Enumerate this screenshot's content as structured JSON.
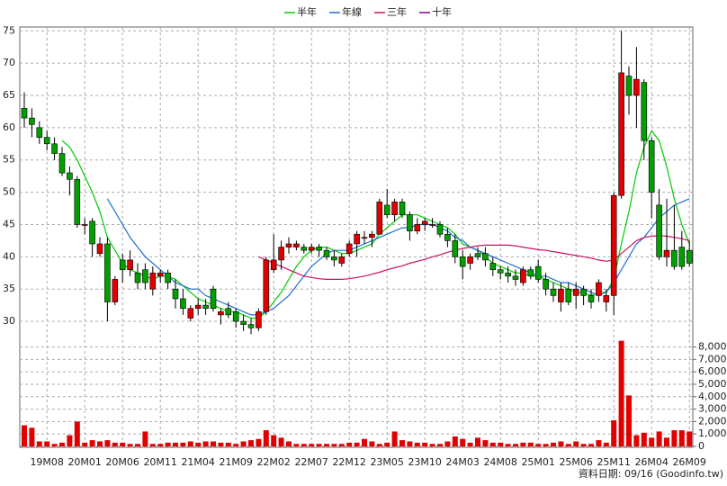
{
  "chart_data": {
    "type": "candlestick",
    "categories": [
      null,
      null,
      null,
      "19M08",
      null,
      null,
      null,
      null,
      "20M01",
      null,
      null,
      null,
      null,
      "20M06",
      null,
      null,
      null,
      null,
      "20M11",
      null,
      null,
      null,
      null,
      "21M04",
      null,
      null,
      null,
      null,
      "21M09",
      null,
      null,
      null,
      null,
      "22M02",
      null,
      null,
      null,
      null,
      "22M07",
      null,
      null,
      null,
      null,
      "22M12",
      null,
      null,
      null,
      null,
      "23M05",
      null,
      null,
      null,
      null,
      "23M10",
      null,
      null,
      null,
      null,
      "24M03",
      null,
      null,
      null,
      null,
      "24M08",
      null,
      null,
      null,
      null,
      "25M01",
      null,
      null,
      null,
      null,
      "25M06",
      null,
      null,
      null,
      null,
      "25M11",
      null,
      null,
      null,
      null,
      "26M04",
      null,
      null,
      null,
      null,
      "26M09"
    ],
    "open": [
      63,
      61.5,
      60,
      58.5,
      57.5,
      56,
      53,
      52,
      45,
      45.5,
      40.5,
      42,
      33,
      39.5,
      38,
      37.5,
      38,
      35,
      37,
      37.5,
      35,
      33.5,
      30.5,
      32,
      32.5,
      35,
      31,
      32,
      31.5,
      30,
      29.5,
      29,
      31.5,
      38,
      39.5,
      41.5,
      41.5,
      41.5,
      41,
      41.5,
      41,
      40,
      39,
      40.5,
      42,
      43,
      43,
      43.5,
      48,
      46.5,
      48.5,
      46.5,
      44,
      45,
      45,
      45,
      43.5,
      42.5,
      40,
      39,
      40.5,
      40.5,
      39,
      38,
      37.5,
      37,
      36,
      38,
      38.5,
      36.5,
      35,
      33,
      35,
      34,
      35,
      34,
      34,
      33,
      34,
      49.5,
      68,
      65,
      67,
      58,
      48,
      40,
      41,
      41.5,
      41
    ],
    "high": [
      65.5,
      63,
      61,
      59.5,
      58.5,
      57,
      54,
      52.5,
      46,
      46,
      43,
      43,
      37,
      40.5,
      41,
      39,
      39,
      38.5,
      38,
      38,
      36.5,
      35,
      32.5,
      33.5,
      33.5,
      35.5,
      32,
      33,
      32,
      31,
      30.5,
      32,
      40,
      43.5,
      42.5,
      43,
      42.5,
      42,
      42,
      42,
      41.5,
      41,
      40.5,
      42.5,
      44,
      44,
      44,
      49,
      50.5,
      49,
      49,
      47,
      46,
      46,
      46,
      45.5,
      44.5,
      43.5,
      41,
      40.5,
      41.5,
      41.5,
      40,
      38.5,
      38.5,
      38,
      38.5,
      38.5,
      39.5,
      37.5,
      36,
      36,
      36,
      36,
      35.5,
      35,
      36.5,
      35,
      50,
      75,
      69.5,
      72.5,
      67.5,
      58.5,
      50.5,
      49,
      48,
      44,
      42.5
    ],
    "low": [
      60,
      58.5,
      57.5,
      56.5,
      55,
      52.5,
      49.5,
      44.5,
      43.5,
      40,
      40,
      30,
      32.5,
      36,
      37,
      35,
      35,
      34,
      36,
      35,
      32,
      31,
      30,
      31,
      31,
      31.5,
      29.5,
      30.5,
      29,
      28.5,
      28,
      28.5,
      31,
      37.5,
      38,
      40.5,
      41,
      40.5,
      40.5,
      40,
      39.5,
      38.5,
      38.5,
      40,
      40,
      42,
      41.5,
      43.5,
      46,
      45.5,
      46,
      42.5,
      43.5,
      44,
      44.5,
      43,
      41.5,
      39,
      36.5,
      38,
      39.5,
      38.5,
      37,
      36.5,
      36,
      35.5,
      35.5,
      36.5,
      36,
      34,
      33,
      31.5,
      32.5,
      32,
      32.5,
      32,
      33,
      31.5,
      31,
      49,
      62,
      60,
      55,
      46,
      39.5,
      38.5,
      38,
      38,
      38.5
    ],
    "close": [
      61.5,
      60.5,
      58.5,
      57.5,
      56,
      53,
      52,
      45,
      45,
      42,
      42,
      33,
      36.5,
      38,
      39.5,
      36,
      36,
      37.5,
      37.5,
      36,
      33.5,
      32,
      32,
      32.5,
      32,
      32,
      31.5,
      31,
      30,
      29.5,
      29,
      31.5,
      39.5,
      39.5,
      41.5,
      42,
      42,
      41,
      41.5,
      41,
      40,
      39.5,
      40,
      42,
      43.5,
      43,
      43.5,
      48.5,
      46.5,
      48.5,
      46.5,
      44,
      45,
      45.5,
      45,
      43.5,
      42.5,
      40,
      38.5,
      40,
      40,
      39.5,
      38,
      37.5,
      37,
      36.5,
      38,
      37,
      36.5,
      35,
      34,
      35,
      33,
      35,
      34,
      33,
      36,
      34,
      49.5,
      68.5,
      65,
      67.5,
      58,
      50,
      40,
      41,
      38.5,
      38.5,
      39
    ],
    "up_color": "#e00000",
    "down_color": "#00a000",
    "volume": [
      1700,
      1500,
      400,
      400,
      200,
      300,
      900,
      2000,
      300,
      500,
      400,
      500,
      300,
      300,
      200,
      200,
      1200,
      200,
      200,
      300,
      300,
      300,
      400,
      300,
      400,
      400,
      300,
      300,
      200,
      400,
      500,
      600,
      1300,
      900,
      700,
      400,
      200,
      200,
      200,
      200,
      200,
      200,
      200,
      300,
      300,
      600,
      400,
      200,
      300,
      1200,
      500,
      400,
      300,
      300,
      200,
      200,
      400,
      800,
      600,
      300,
      700,
      500,
      300,
      300,
      200,
      200,
      300,
      300,
      200,
      200,
      300,
      400,
      200,
      400,
      200,
      200,
      500,
      300,
      2100,
      8500,
      4100,
      900,
      1100,
      700,
      1200,
      700,
      1300,
      1300,
      1200
    ],
    "volume_color": "#e00000",
    "series": [
      {
        "name": "半年",
        "color": "#00cc00",
        "values": [
          null,
          null,
          null,
          null,
          null,
          58,
          57,
          55,
          52.5,
          50,
          47,
          43,
          41,
          39,
          38,
          37.5,
          37,
          36.5,
          37,
          37,
          36.5,
          35.5,
          34.5,
          33.5,
          33,
          32.5,
          32,
          31.5,
          31.5,
          31,
          30.5,
          30.5,
          31.5,
          33,
          34.5,
          36.5,
          38.5,
          40,
          41,
          41.5,
          41.5,
          41,
          40.5,
          40.5,
          41,
          41.5,
          42,
          43.5,
          44.5,
          45.5,
          46.5,
          46.5,
          46.5,
          46,
          45.5,
          45,
          44.5,
          43.5,
          42,
          41.5,
          41,
          40,
          39,
          38.5,
          38,
          37.5,
          37.5,
          37,
          37,
          36.5,
          36,
          35.5,
          35,
          34.5,
          34.5,
          34,
          34.5,
          34.5,
          36.5,
          42,
          47,
          53,
          57,
          59.5,
          58,
          54,
          49,
          45,
          42
        ]
      },
      {
        "name": "年線",
        "color": "#1f6fd0",
        "values": [
          null,
          null,
          null,
          null,
          null,
          null,
          null,
          null,
          null,
          null,
          null,
          49,
          47,
          45,
          43,
          41.5,
          40,
          39,
          38,
          37,
          36,
          35.5,
          35,
          35,
          34,
          33.5,
          33,
          32.5,
          32,
          31.5,
          31,
          31,
          31.5,
          32,
          33,
          34,
          35.5,
          37,
          38.5,
          39.5,
          40.5,
          41,
          41,
          41,
          41.5,
          42,
          42.5,
          43,
          43.5,
          44,
          44.5,
          44.5,
          45,
          45,
          45,
          44.5,
          44,
          43,
          42.5,
          41.5,
          41,
          40.5,
          40,
          39.5,
          39,
          38.5,
          38,
          37.5,
          37,
          37,
          36.5,
          36,
          36,
          35.5,
          35,
          34.5,
          34,
          34.5,
          36,
          38,
          40,
          42,
          43,
          44.5,
          46,
          47,
          48,
          48.5,
          49
        ]
      },
      {
        "name": "三年",
        "color": "#cc1060",
        "values": [
          null,
          null,
          null,
          null,
          null,
          null,
          null,
          null,
          null,
          null,
          null,
          null,
          null,
          null,
          null,
          null,
          null,
          null,
          null,
          null,
          null,
          null,
          null,
          null,
          null,
          null,
          null,
          null,
          null,
          null,
          null,
          40,
          39.5,
          39,
          38.5,
          38,
          37.5,
          37,
          36.8,
          36.6,
          36.5,
          36.5,
          36.5,
          36.6,
          36.8,
          37,
          37.3,
          37.6,
          38,
          38.3,
          38.6,
          39,
          39.3,
          39.6,
          40,
          40.3,
          40.7,
          41,
          41.3,
          41.5,
          41.7,
          41.8,
          41.8,
          41.8,
          41.8,
          41.7,
          41.5,
          41.3,
          41.1,
          41,
          40.8,
          40.6,
          40.4,
          40.2,
          40,
          39.8,
          39.5,
          39.3,
          39.5,
          40.5,
          41.5,
          42.5,
          43,
          43.2,
          43.3,
          43.2,
          43,
          42.8,
          42.5
        ]
      },
      {
        "name": "十年",
        "color": "#800080",
        "values": [
          null,
          null,
          null,
          null,
          null,
          null,
          null,
          null,
          null,
          null,
          null,
          null,
          null,
          null,
          null,
          null,
          null,
          null,
          null,
          null,
          null,
          null,
          null,
          null,
          null,
          null,
          null,
          null,
          null,
          null,
          null,
          null,
          null,
          null,
          null,
          null,
          null,
          null,
          null,
          null,
          null,
          null,
          null,
          null,
          null,
          null,
          null,
          null,
          null,
          null,
          null,
          null,
          null,
          null,
          null,
          null,
          null,
          null,
          null,
          null,
          null,
          null,
          null,
          null,
          null,
          null,
          null,
          null,
          null,
          null,
          null,
          null,
          null,
          null,
          null,
          null,
          null,
          null,
          null,
          null,
          null,
          null,
          null,
          null,
          null,
          null,
          null,
          null,
          null
        ]
      }
    ],
    "ylim": [
      26.8,
      75.6
    ],
    "yticks": [
      30,
      35,
      40,
      45,
      50,
      55,
      60,
      65,
      70,
      75
    ],
    "y2lim": [
      0,
      8400
    ],
    "y2ticks": [
      0,
      {
        "value": 1000,
        "label": "1,000"
      },
      {
        "value": 2000,
        "label": "2,000"
      },
      {
        "value": 3000,
        "label": "3,000"
      },
      {
        "value": 4000,
        "label": "4,000"
      },
      {
        "value": 5000,
        "label": "5,000"
      },
      {
        "value": 6000,
        "label": "6,000"
      },
      {
        "value": 7000,
        "label": "7,000"
      },
      {
        "value": 8000,
        "label": "8,000"
      }
    ],
    "grid": true,
    "source": "資料日期: 09/16  (Goodinfo.tw)"
  }
}
